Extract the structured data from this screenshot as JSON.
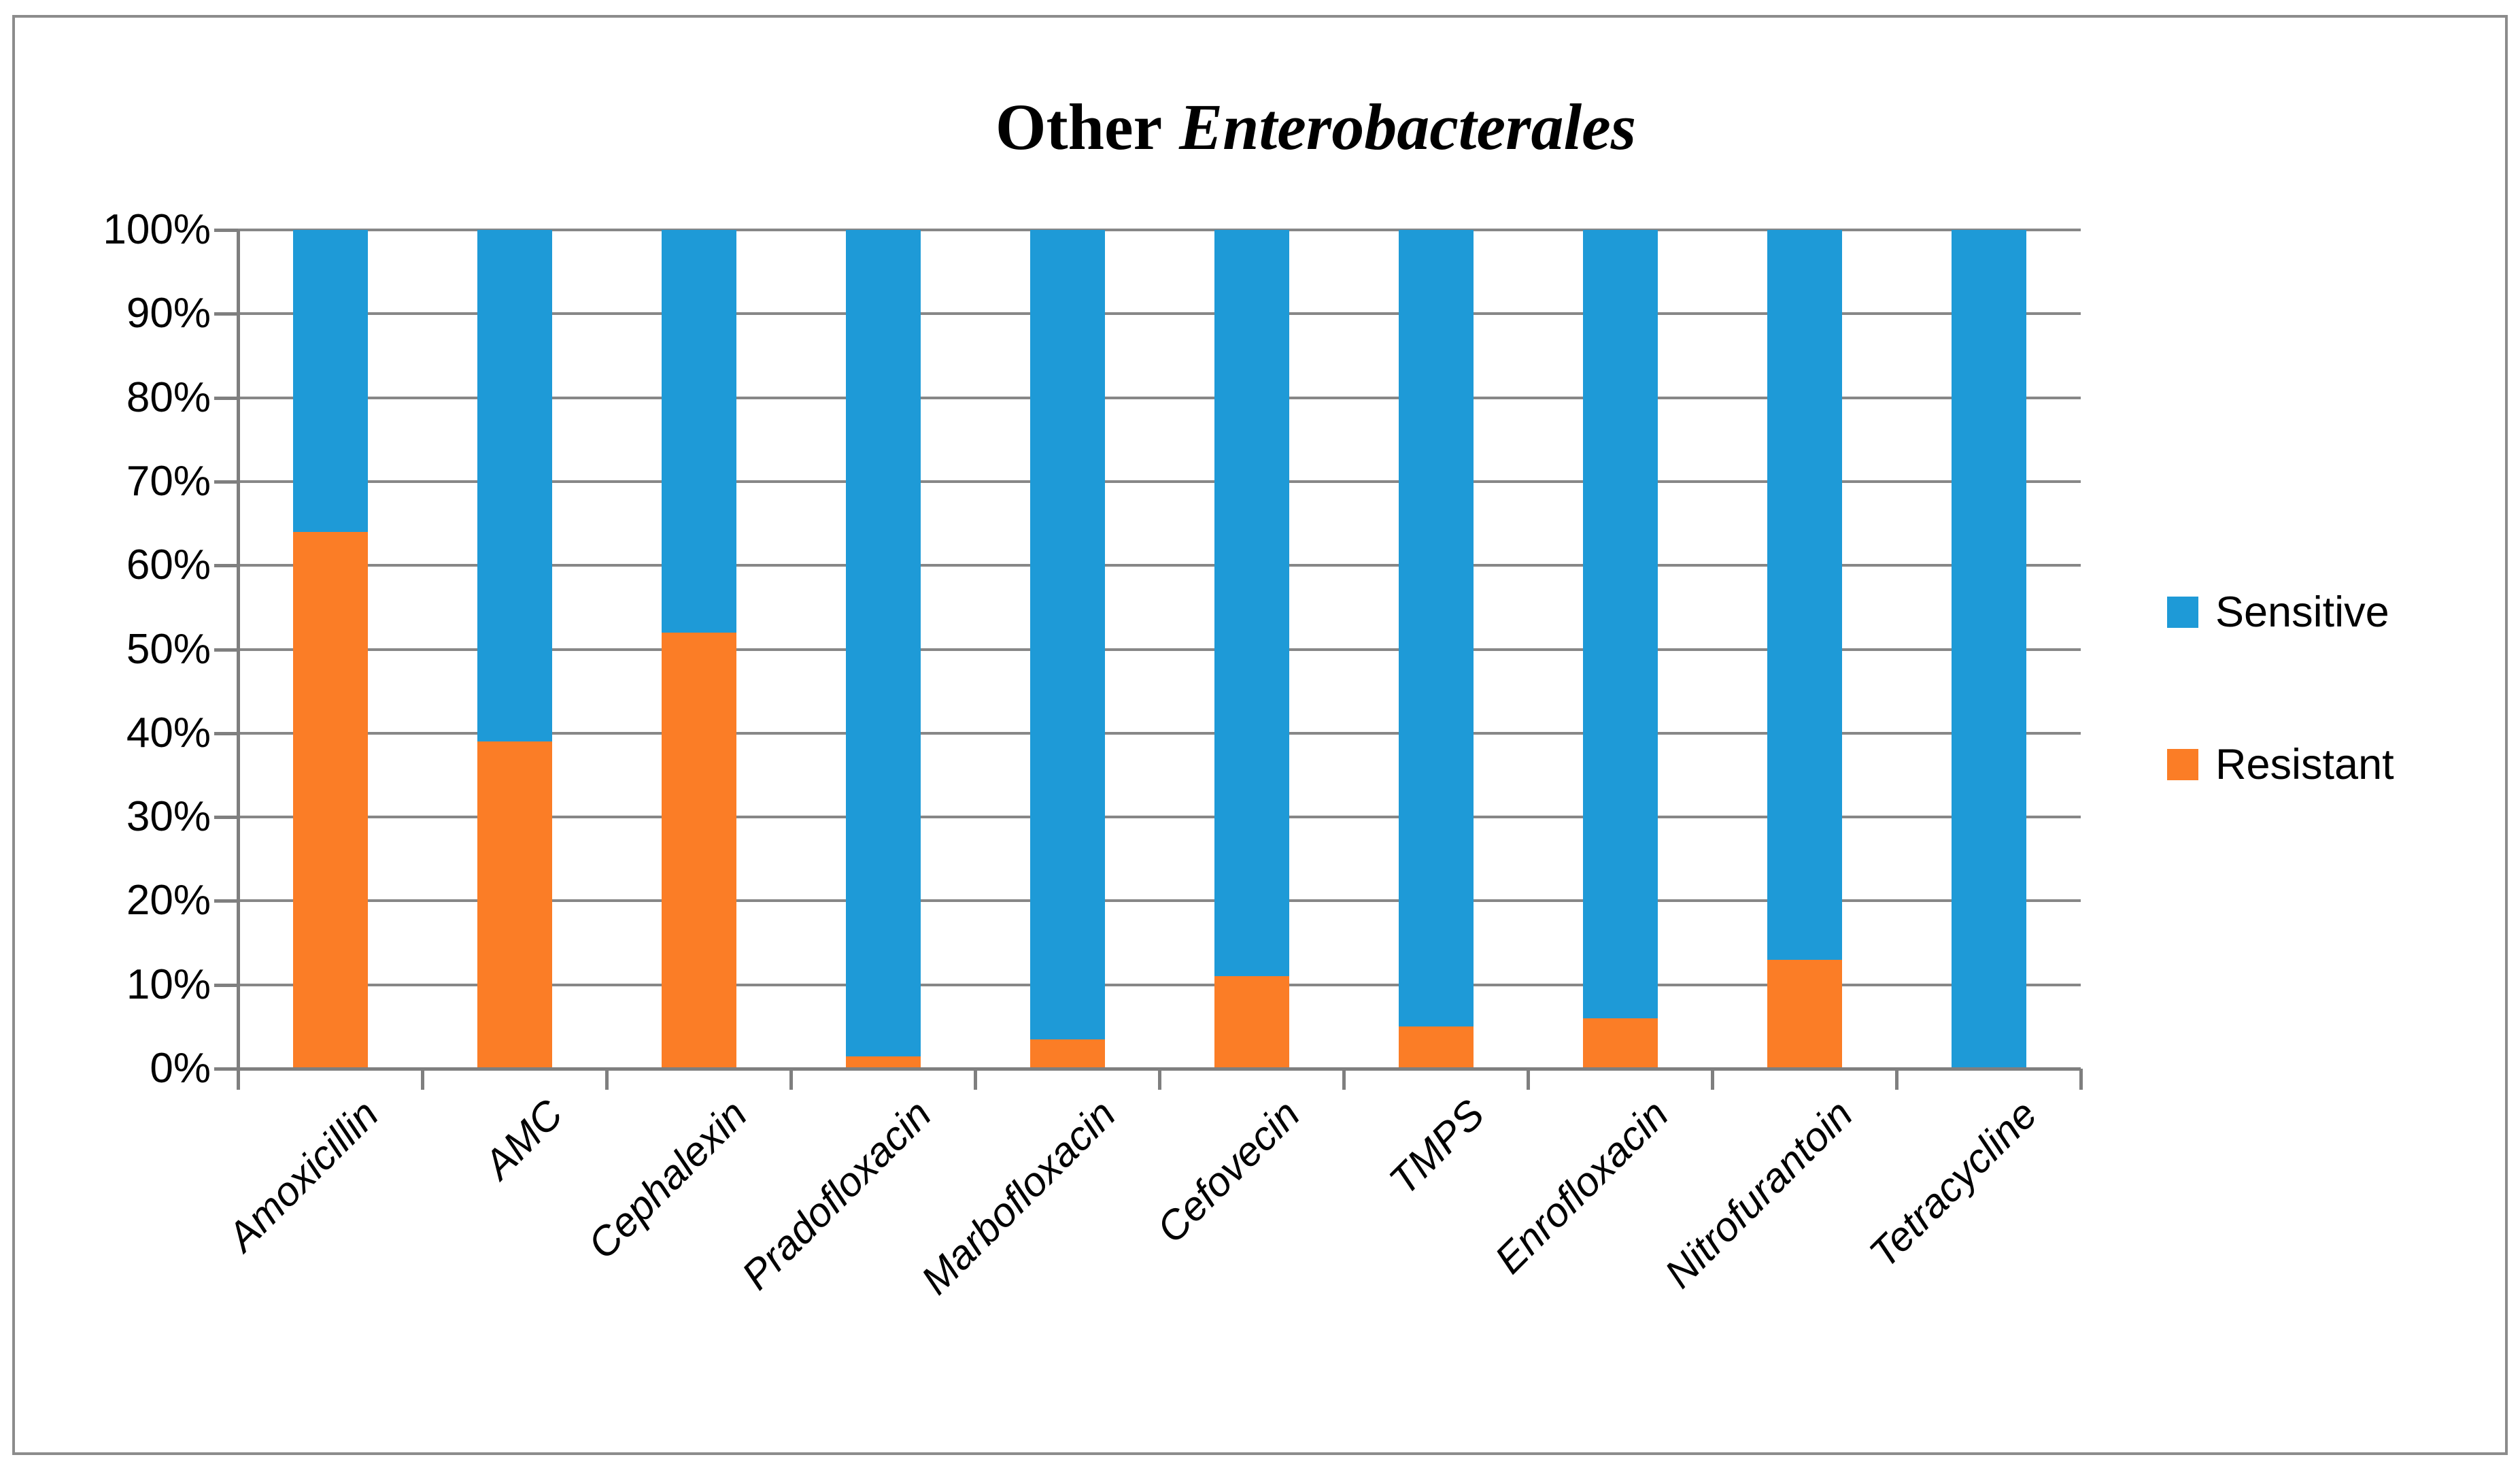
{
  "title": {
    "prefix": "Other",
    "italic_part": "Enterobacterales"
  },
  "colors": {
    "sensitive_blue": "#1E9AD7",
    "resistant_orange": "#FB7D26",
    "gridline_gray": "#878787",
    "axis_gray": "#7F7F7F",
    "border_gray": "#8C8C8C",
    "text": "#000000",
    "background": "#FFFFFF"
  },
  "legend": {
    "position": "right-middle",
    "items": [
      "Sensitive",
      "Resistant"
    ]
  },
  "chart_data": {
    "type": "bar",
    "stacked": true,
    "orientation": "vertical",
    "title": "Other Enterobacterales",
    "categories": [
      "Amoxicillin",
      "AMC",
      "Cephalexin",
      "Pradofloxacin",
      "Marbofloxacin",
      "Cefovecin",
      "TMPS",
      "Enrofloxacin",
      "Nitrofurantoin",
      "Tetracycline"
    ],
    "series": [
      {
        "name": "Sensitive",
        "color": "#1E9AD7",
        "values": [
          36,
          61,
          48,
          98.5,
          96.5,
          89,
          95,
          94,
          87,
          100
        ]
      },
      {
        "name": "Resistant",
        "color": "#FB7D26",
        "values": [
          64,
          39,
          52,
          1.5,
          3.5,
          11,
          5,
          6,
          13,
          0
        ]
      }
    ],
    "stack_order_bottom_to_top": [
      "Resistant",
      "Sensitive"
    ],
    "units": "percent",
    "y_axis": {
      "min": 0,
      "max": 100,
      "step": 10,
      "tick_labels": [
        "100%",
        "90%",
        "80%",
        "70%",
        "60%",
        "50%",
        "40%",
        "30%",
        "20%",
        "10%",
        "0%"
      ]
    },
    "x_axis": {
      "label_rotation_deg": 45,
      "label_style": "italic"
    },
    "grid": "horizontal",
    "legend_position": "right-middle"
  }
}
